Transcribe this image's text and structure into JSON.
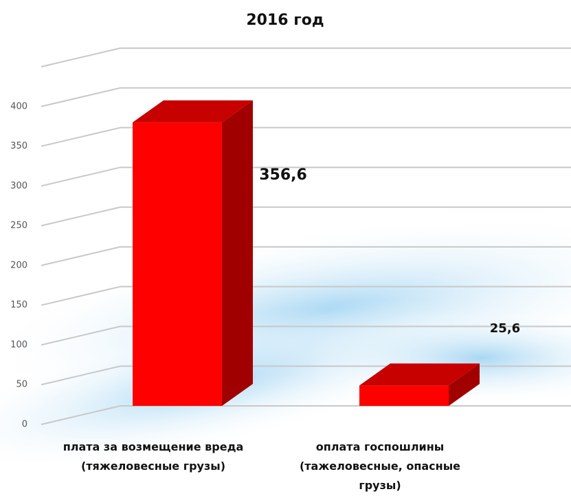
{
  "chart_data": {
    "type": "bar3d",
    "title": "2016 год",
    "categories": [
      "плата за возмещение вреда (тяжеловесные грузы)",
      "оплата госпошлины (тажеловесные, опасные грузы)"
    ],
    "values": [
      356.6,
      25.6
    ],
    "value_labels": [
      "356,6",
      "25,6"
    ],
    "color": "#ff0000",
    "ylim": [
      0,
      450
    ],
    "yticks": [
      0,
      50,
      100,
      150,
      200,
      250,
      300,
      350,
      400
    ],
    "grid": true
  }
}
